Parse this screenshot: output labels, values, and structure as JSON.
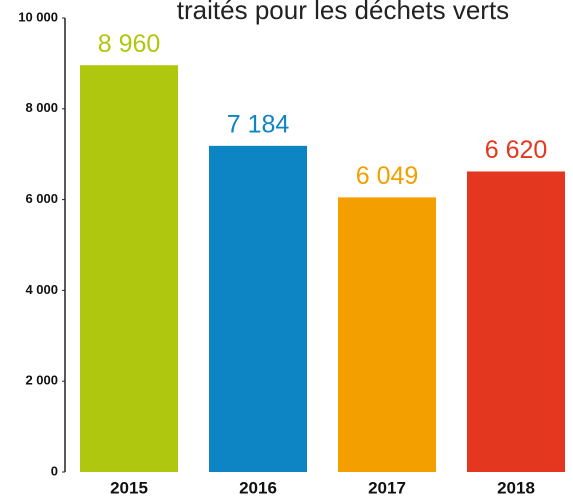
{
  "chart_data": {
    "type": "bar",
    "title": "traités pour les déchets verts",
    "categories": [
      "2015",
      "2016",
      "2017",
      "2018"
    ],
    "values": [
      8960,
      7184,
      6049,
      6620
    ],
    "value_labels": [
      "8 960",
      "7 184",
      "6 049",
      "6 620"
    ],
    "colors": [
      "#afc70f",
      "#0d85c4",
      "#f39f00",
      "#e4371f"
    ],
    "ylim": [
      0,
      10000
    ],
    "yticks": [
      {
        "value": 0,
        "label": "0"
      },
      {
        "value": 2000,
        "label": "2 000"
      },
      {
        "value": 4000,
        "label": "4 000"
      },
      {
        "value": 6000,
        "label": "6 000"
      },
      {
        "value": 8000,
        "label": "8 000"
      },
      {
        "value": 10000,
        "label": "10 000"
      }
    ],
    "grid": false
  }
}
